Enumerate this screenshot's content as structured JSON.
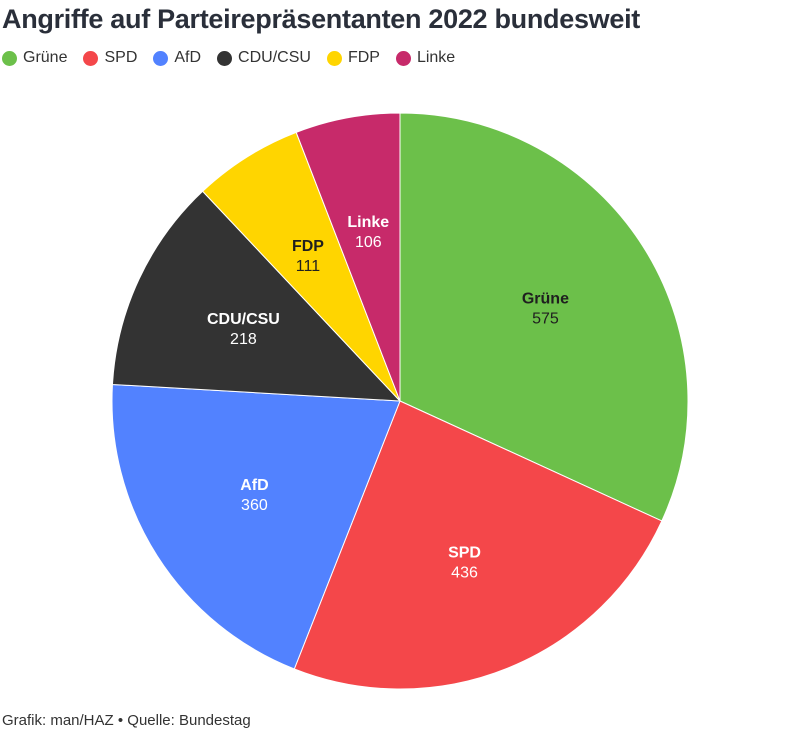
{
  "title": "Angriffe auf Parteirepräsentanten 2022 bundesweit",
  "footer": "Grafik: man/HAZ • Quelle: Bundestag",
  "chart_data": {
    "type": "pie",
    "title": "Angriffe auf Parteirepräsentanten 2022 bundesweit",
    "legend_position": "top-left",
    "slices": [
      {
        "name": "Grüne",
        "value": 575,
        "color": "#6cc04a",
        "label_color": "#1f1f1f"
      },
      {
        "name": "SPD",
        "value": 436,
        "color": "#f4474a",
        "label_color": "#ffffff"
      },
      {
        "name": "AfD",
        "value": 360,
        "color": "#5282ff",
        "label_color": "#ffffff"
      },
      {
        "name": "CDU/CSU",
        "value": 218,
        "color": "#333333",
        "label_color": "#ffffff"
      },
      {
        "name": "FDP",
        "value": 111,
        "color": "#ffd500",
        "label_color": "#1f1f1f"
      },
      {
        "name": "Linke",
        "value": 106,
        "color": "#c72a6a",
        "label_color": "#ffffff"
      }
    ]
  }
}
